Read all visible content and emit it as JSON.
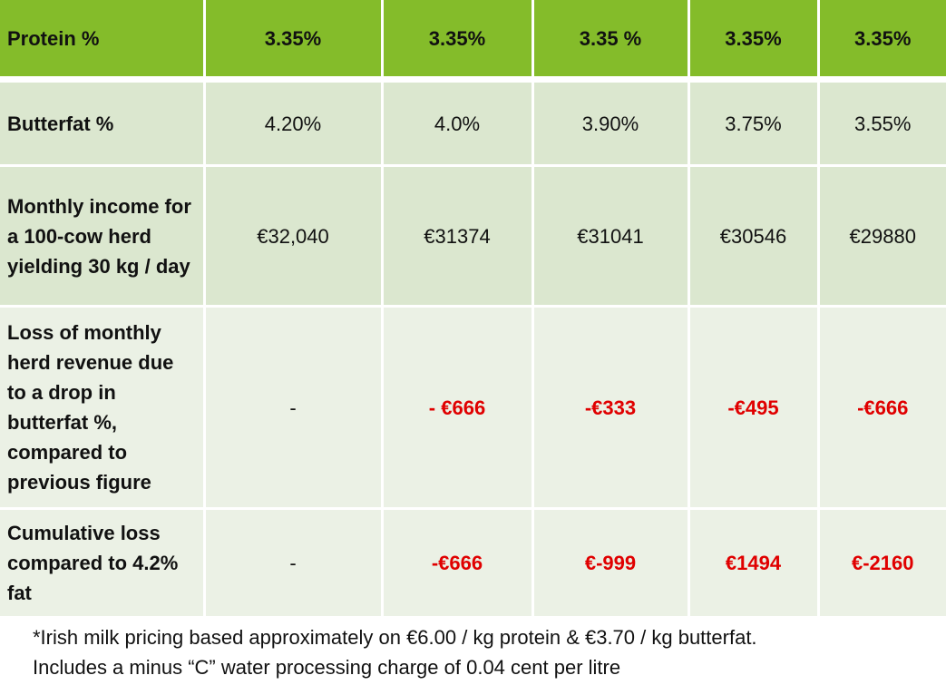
{
  "table": {
    "protein": {
      "label": "Protein %",
      "values": [
        "3.35%",
        "3.35%",
        "3.35 %",
        "3.35%",
        "3.35%"
      ]
    },
    "butterfat": {
      "label": "Butterfat %",
      "values": [
        "4.20%",
        "4.0%",
        "3.90%",
        "3.75%",
        "3.55%"
      ]
    },
    "income": {
      "label": "Monthly income for a 100-cow herd yielding 30 kg / day",
      "values": [
        "€32,040",
        "€31374",
        "€31041",
        "€30546",
        "€29880"
      ]
    },
    "loss": {
      "label": "Loss of monthly herd revenue due to a drop in butterfat %, compared to previous figure",
      "values": [
        "-",
        "- €666",
        "-€333",
        "-€495",
        "-€666"
      ]
    },
    "cumulative": {
      "label": "Cumulative loss compared to 4.2% fat",
      "values": [
        "-",
        "-€666",
        "€-999",
        "€1494",
        "€-2160"
      ]
    }
  },
  "footnote": {
    "line1": "*Irish milk pricing based approximately on €6.00 / kg protein & €3.70 / kg butterfat.",
    "line2": "Includes a minus “C” water processing charge of 0.04 cent per litre"
  },
  "colors": {
    "header_green": "#84bc2a",
    "row_dark": "#dbe7cf",
    "row_light": "#ebf1e5",
    "negative_red": "#e00000"
  }
}
